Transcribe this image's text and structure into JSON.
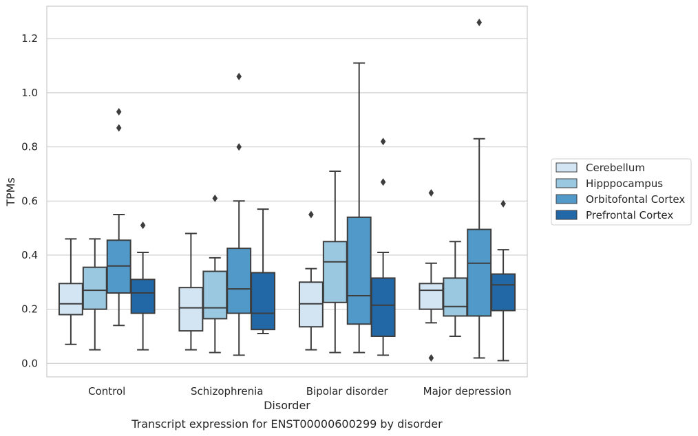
{
  "chart_data": {
    "type": "box",
    "xlabel": "Disorder",
    "ylabel": "TPMs",
    "caption": "Transcript expression for ENST00000600299 by disorder",
    "ylim": [
      -0.05,
      1.32
    ],
    "yticks": [
      "0.0",
      "0.2",
      "0.4",
      "0.6",
      "0.8",
      "1.0",
      "1.2"
    ],
    "grid": "horizontal",
    "legend_position": "right",
    "categories": [
      "Control",
      "Schizophrenia",
      "Bipolar disorder",
      "Major depression"
    ],
    "series": [
      {
        "name": "Cerebellum",
        "color": "#d3e4f3",
        "boxes": [
          {
            "whisker_low": 0.07,
            "q1": 0.18,
            "median": 0.22,
            "q3": 0.295,
            "whisker_high": 0.46,
            "outliers": []
          },
          {
            "whisker_low": 0.05,
            "q1": 0.12,
            "median": 0.205,
            "q3": 0.28,
            "whisker_high": 0.48,
            "outliers": []
          },
          {
            "whisker_low": 0.05,
            "q1": 0.135,
            "median": 0.22,
            "q3": 0.3,
            "whisker_high": 0.35,
            "outliers": [
              0.55
            ]
          },
          {
            "whisker_low": 0.15,
            "q1": 0.2,
            "median": 0.27,
            "q3": 0.295,
            "whisker_high": 0.37,
            "outliers": [
              0.02,
              0.63
            ]
          }
        ]
      },
      {
        "name": "Hipppocampus",
        "color": "#9ac8e0",
        "boxes": [
          {
            "whisker_low": 0.05,
            "q1": 0.2,
            "median": 0.27,
            "q3": 0.355,
            "whisker_high": 0.46,
            "outliers": []
          },
          {
            "whisker_low": 0.04,
            "q1": 0.165,
            "median": 0.205,
            "q3": 0.34,
            "whisker_high": 0.39,
            "outliers": [
              0.61
            ]
          },
          {
            "whisker_low": 0.04,
            "q1": 0.225,
            "median": 0.375,
            "q3": 0.45,
            "whisker_high": 0.71,
            "outliers": []
          },
          {
            "whisker_low": 0.1,
            "q1": 0.175,
            "median": 0.21,
            "q3": 0.315,
            "whisker_high": 0.45,
            "outliers": []
          }
        ]
      },
      {
        "name": "Orbitofontal Cortex",
        "color": "#5099c8",
        "boxes": [
          {
            "whisker_low": 0.14,
            "q1": 0.26,
            "median": 0.36,
            "q3": 0.455,
            "whisker_high": 0.55,
            "outliers": [
              0.87,
              0.93
            ]
          },
          {
            "whisker_low": 0.03,
            "q1": 0.185,
            "median": 0.275,
            "q3": 0.425,
            "whisker_high": 0.6,
            "outliers": [
              0.8,
              1.06
            ]
          },
          {
            "whisker_low": 0.04,
            "q1": 0.145,
            "median": 0.25,
            "q3": 0.54,
            "whisker_high": 1.11,
            "outliers": []
          },
          {
            "whisker_low": 0.02,
            "q1": 0.175,
            "median": 0.37,
            "q3": 0.495,
            "whisker_high": 0.83,
            "outliers": [
              1.26
            ]
          }
        ]
      },
      {
        "name": "Prefrontal Cortex",
        "color": "#2268a6",
        "boxes": [
          {
            "whisker_low": 0.05,
            "q1": 0.185,
            "median": 0.26,
            "q3": 0.31,
            "whisker_high": 0.41,
            "outliers": [
              0.51
            ]
          },
          {
            "whisker_low": 0.11,
            "q1": 0.125,
            "median": 0.185,
            "q3": 0.335,
            "whisker_high": 0.57,
            "outliers": []
          },
          {
            "whisker_low": 0.03,
            "q1": 0.1,
            "median": 0.215,
            "q3": 0.315,
            "whisker_high": 0.41,
            "outliers": [
              0.67,
              0.82
            ]
          },
          {
            "whisker_low": 0.01,
            "q1": 0.195,
            "median": 0.29,
            "q3": 0.33,
            "whisker_high": 0.42,
            "outliers": [
              0.59
            ]
          }
        ]
      }
    ]
  }
}
